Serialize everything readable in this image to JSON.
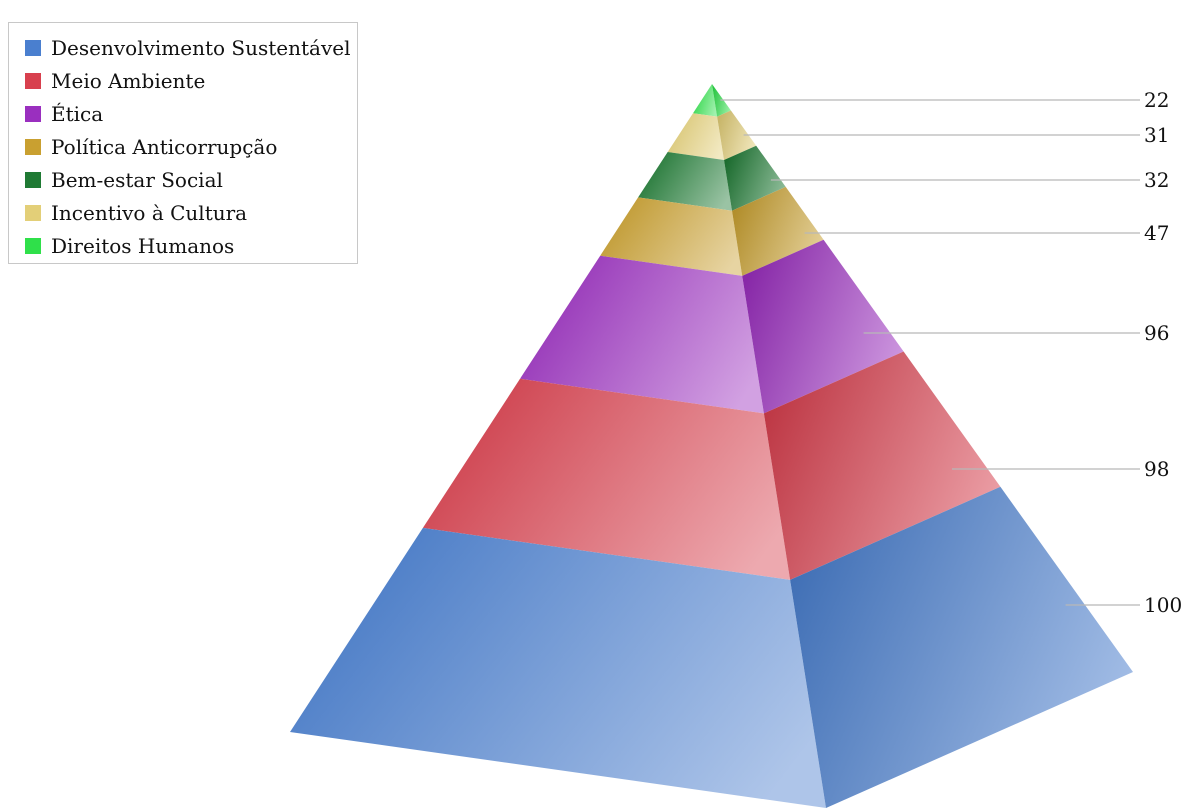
{
  "chart_data": {
    "type": "pyramid",
    "title": "",
    "legend_position": "top-left",
    "grid": false,
    "categories": [
      "Desenvolvimento Sustentável",
      "Meio Ambiente",
      "Ética",
      "Política Anticorrupção",
      "Bem-estar Social",
      "Incentivo à Cultura",
      "Direitos Humanos"
    ],
    "values": [
      100,
      98,
      96,
      47,
      32,
      31,
      22
    ],
    "colors": [
      "#4a7fcf",
      "#d8404e",
      "#9a2fbf",
      "#c9a030",
      "#1f7a34",
      "#e3cf78",
      "#2fe04a"
    ]
  }
}
